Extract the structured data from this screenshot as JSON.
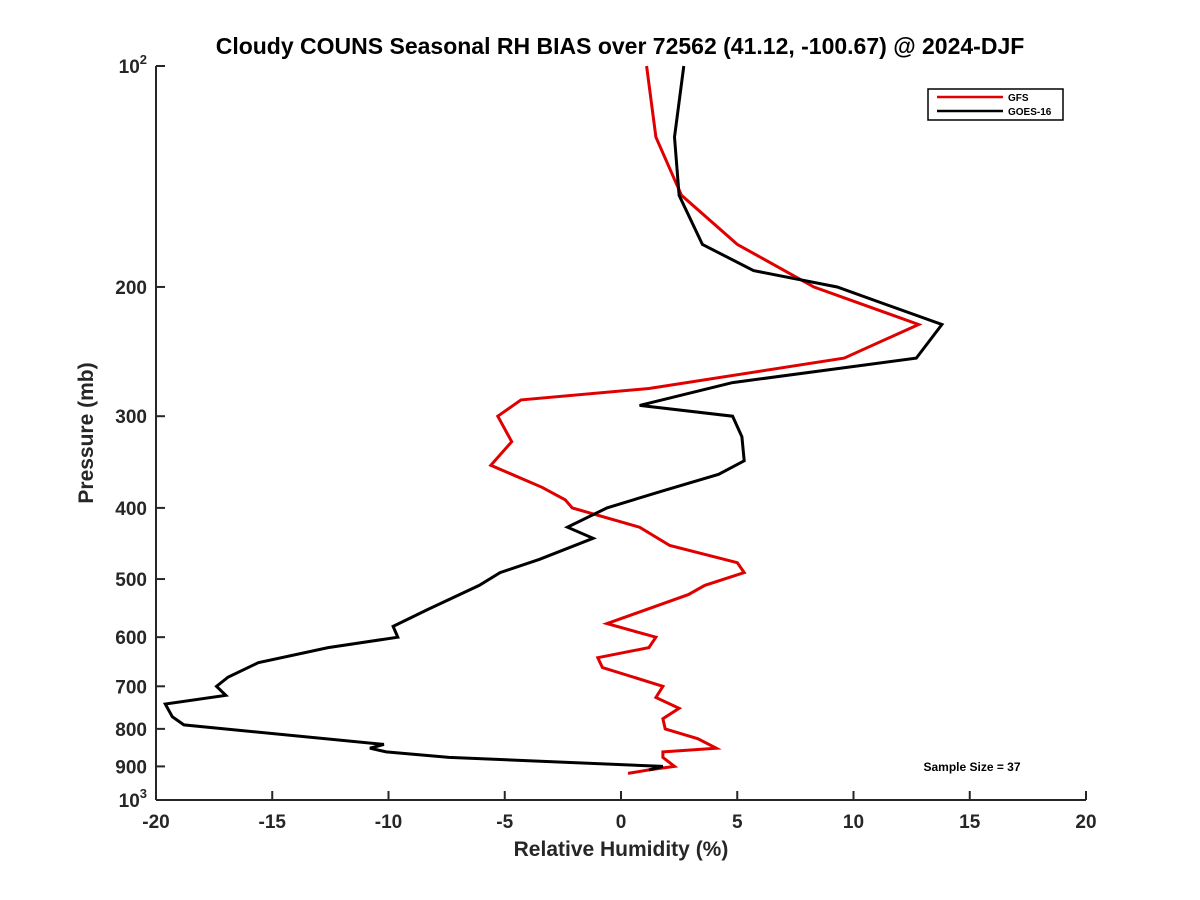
{
  "chart_data": {
    "type": "line",
    "title": "Cloudy COUNS Seasonal RH BIAS over 72562 (41.12, -100.67) @ 2024-DJF",
    "xlabel": "Relative Humidity (%)",
    "ylabel": "Pressure (mb)",
    "xlim": [
      -20,
      20
    ],
    "ylim": [
      100,
      1000
    ],
    "yscale": "log",
    "y_reversed": true,
    "xticks": [
      -20,
      -15,
      -10,
      -5,
      0,
      5,
      10,
      15,
      20
    ],
    "xtick_labels": [
      "-20",
      "-15",
      "-10",
      "-5",
      "0",
      "5",
      "10",
      "15",
      "20"
    ],
    "yticks": [
      100,
      200,
      300,
      400,
      500,
      600,
      700,
      800,
      900,
      1000
    ],
    "ytick_labels": [
      {
        "base": "10",
        "exp": "2"
      },
      {
        "text": "200"
      },
      {
        "text": "300"
      },
      {
        "text": "400"
      },
      {
        "text": "500"
      },
      {
        "text": "600"
      },
      {
        "text": "700"
      },
      {
        "text": "800"
      },
      {
        "text": "900"
      },
      {
        "base": "10",
        "exp": "3"
      }
    ],
    "legend_position": "top-right",
    "annotation": "Sample Size = 37",
    "series": [
      {
        "name": "GFS",
        "color": "#e00000",
        "points": [
          [
            1.1,
            100
          ],
          [
            1.5,
            125
          ],
          [
            2.6,
            150
          ],
          [
            5.0,
            175
          ],
          [
            8.3,
            200
          ],
          [
            12.8,
            225
          ],
          [
            9.6,
            250
          ],
          [
            1.2,
            275
          ],
          [
            -4.3,
            285
          ],
          [
            -5.3,
            300
          ],
          [
            -4.7,
            325
          ],
          [
            -5.6,
            350
          ],
          [
            -3.4,
            375
          ],
          [
            -2.4,
            390
          ],
          [
            -2.1,
            400
          ],
          [
            0.8,
            425
          ],
          [
            2.1,
            450
          ],
          [
            5.0,
            475
          ],
          [
            5.3,
            490
          ],
          [
            3.6,
            510
          ],
          [
            2.9,
            525
          ],
          [
            -0.6,
            575
          ],
          [
            1.5,
            600
          ],
          [
            1.2,
            620
          ],
          [
            -1.0,
            640
          ],
          [
            -0.8,
            660
          ],
          [
            1.8,
            700
          ],
          [
            1.5,
            725
          ],
          [
            2.5,
            750
          ],
          [
            1.8,
            775
          ],
          [
            1.9,
            800
          ],
          [
            3.3,
            825
          ],
          [
            4.1,
            850
          ],
          [
            1.8,
            860
          ],
          [
            1.8,
            875
          ],
          [
            2.3,
            900
          ],
          [
            1.2,
            910
          ],
          [
            0.3,
            920
          ]
        ]
      },
      {
        "name": "GOES-16",
        "color": "#000000",
        "points": [
          [
            2.7,
            100
          ],
          [
            2.3,
            125
          ],
          [
            2.5,
            150
          ],
          [
            3.5,
            175
          ],
          [
            5.7,
            190
          ],
          [
            9.3,
            200
          ],
          [
            13.8,
            225
          ],
          [
            12.7,
            250
          ],
          [
            4.8,
            270
          ],
          [
            0.8,
            290
          ],
          [
            4.8,
            300
          ],
          [
            5.2,
            320
          ],
          [
            5.3,
            345
          ],
          [
            4.2,
            360
          ],
          [
            1.7,
            380
          ],
          [
            -0.6,
            400
          ],
          [
            -2.3,
            425
          ],
          [
            -1.2,
            440
          ],
          [
            -3.5,
            470
          ],
          [
            -5.2,
            490
          ],
          [
            -6.1,
            510
          ],
          [
            -8.3,
            550
          ],
          [
            -9.8,
            580
          ],
          [
            -9.6,
            600
          ],
          [
            -12.6,
            620
          ],
          [
            -15.6,
            650
          ],
          [
            -16.9,
            680
          ],
          [
            -17.4,
            700
          ],
          [
            -17.0,
            720
          ],
          [
            -19.6,
            740
          ],
          [
            -19.3,
            770
          ],
          [
            -18.8,
            790
          ],
          [
            -10.2,
            840
          ],
          [
            -10.8,
            850
          ],
          [
            -10.1,
            860
          ],
          [
            -7.4,
            875
          ],
          [
            1.8,
            900
          ],
          [
            1.2,
            910
          ]
        ]
      }
    ]
  }
}
